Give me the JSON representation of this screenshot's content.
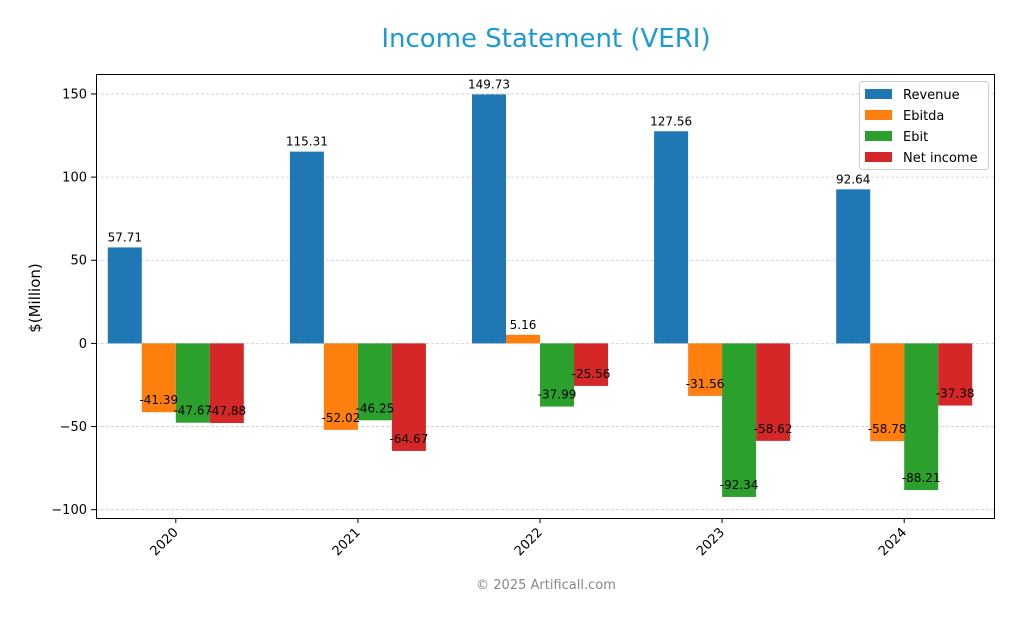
{
  "chart_data": {
    "type": "bar",
    "title": "Income Statement (VERI)",
    "xlabel": "",
    "ylabel": "$(Million)",
    "categories": [
      "2020",
      "2021",
      "2022",
      "2023",
      "2024"
    ],
    "series": [
      {
        "name": "Revenue",
        "color": "#1f77b4",
        "values": [
          57.71,
          115.31,
          149.73,
          127.56,
          92.64
        ]
      },
      {
        "name": "Ebitda",
        "color": "#ff7f0e",
        "values": [
          -41.39,
          -52.02,
          5.16,
          -31.56,
          -58.78
        ]
      },
      {
        "name": "Ebit",
        "color": "#2ca02c",
        "values": [
          -47.67,
          -46.25,
          -37.99,
          -92.34,
          -88.21
        ]
      },
      {
        "name": "Net income",
        "color": "#d62728",
        "values": [
          -47.88,
          -64.67,
          -25.56,
          -58.62,
          -37.38
        ]
      }
    ],
    "ylim": [
      -105,
      162
    ],
    "yticks": [
      -100,
      -50,
      0,
      50,
      100,
      150
    ],
    "ytick_labels": [
      "−100",
      "−50",
      "0",
      "50",
      "100",
      "150"
    ],
    "grid": true,
    "legend_position": "top-right"
  },
  "footer": "© 2025 Artificall.com"
}
